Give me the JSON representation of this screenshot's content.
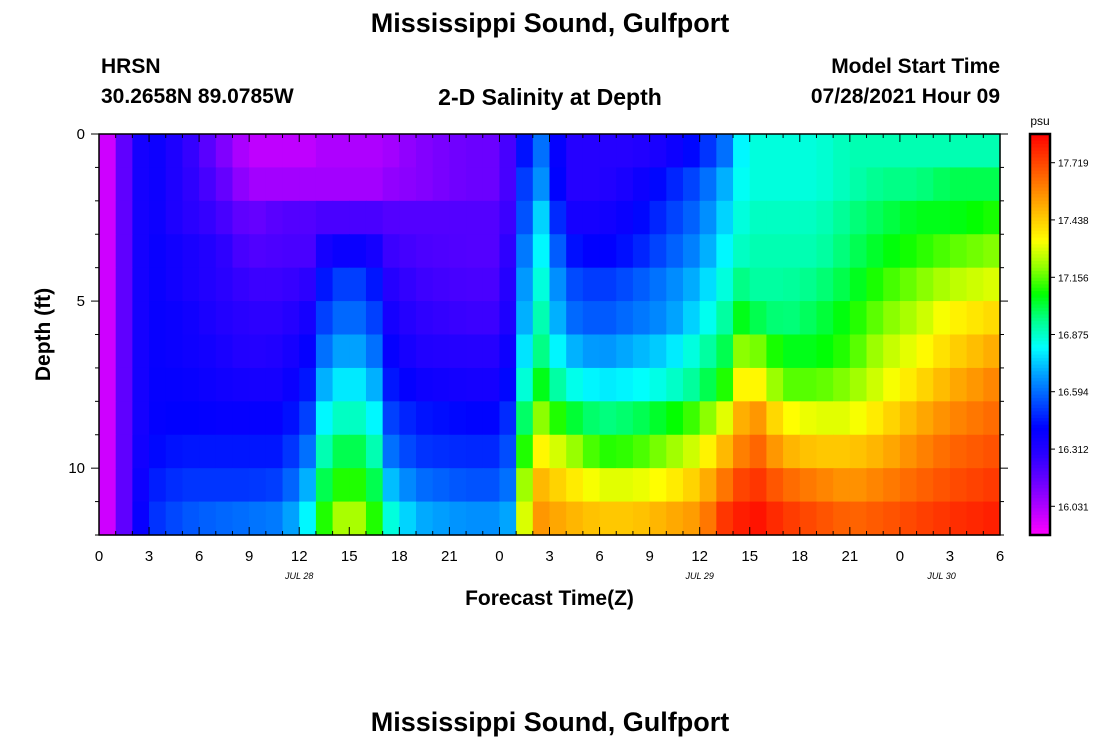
{
  "header": {
    "title": "Mississippi Sound, Gulfport",
    "station": "HRSN",
    "coords": "30.2658N  89.0785W",
    "subtitle": "2-D Salinity at Depth",
    "model_start_label": "Model Start Time",
    "model_start_value": "07/28/2021 Hour 09"
  },
  "footer": {
    "title": "Mississippi Sound, Gulfport"
  },
  "colors": {
    "colormap": [
      "#ff00ff",
      "#b300ff",
      "#6a00ff",
      "#2a00ff",
      "#0000ff",
      "#0050ff",
      "#00a0ff",
      "#00ffff",
      "#00ff90",
      "#00ff00",
      "#90ff00",
      "#ffff00",
      "#ffc000",
      "#ff8000",
      "#ff4000",
      "#ff0000"
    ]
  },
  "chart_data": {
    "type": "heatmap",
    "title": "2-D Salinity at Depth",
    "xlabel": "Forecast Time(Z)",
    "ylabel": "Depth (ft)",
    "colorbar_unit": "psu",
    "colorbar_ticks": [
      "16.031",
      "16.312",
      "16.594",
      "16.875",
      "17.156",
      "17.438",
      "17.719"
    ],
    "value_range": [
      15.89,
      17.86
    ],
    "x_range_hours": [
      0,
      54
    ],
    "x_ticks": [
      "0",
      "3",
      "6",
      "9",
      "12",
      "15",
      "18",
      "21",
      "0",
      "3",
      "6",
      "9",
      "12",
      "15",
      "18",
      "21",
      "0",
      "3",
      "6"
    ],
    "date_labels": [
      "JUL 28",
      "JUL 29",
      "JUL 30"
    ],
    "date_label_hours": [
      12,
      36,
      50.5
    ],
    "y_range_ft": [
      0,
      12
    ],
    "y_ticks": [
      "0",
      "5",
      "10"
    ],
    "depths_ft": [
      0.5,
      1.5,
      2.5,
      3.5,
      4.5,
      5.5,
      6.5,
      7.5,
      8.5,
      9.5,
      10.5,
      11.5
    ],
    "keyframe_hours": [
      0,
      1,
      2,
      3,
      5,
      7,
      9,
      11,
      12.5,
      13.5,
      15,
      16.5,
      17.5,
      19,
      22,
      24,
      25,
      25.7,
      26.5,
      28,
      30,
      32,
      34,
      36,
      37.5,
      38.5,
      39.5,
      41,
      43,
      45,
      47,
      49,
      51,
      54
    ],
    "keyframe_values": [
      [
        15.9,
        16.05,
        16.3,
        16.4,
        16.3,
        16.15,
        16.0,
        16.0,
        16.0,
        16.03,
        16.03,
        16.03,
        16.05,
        16.1,
        16.15,
        16.15,
        16.3,
        16.5,
        16.6,
        16.3,
        16.3,
        16.3,
        16.35,
        16.45,
        16.6,
        16.8,
        16.85,
        16.85,
        16.85,
        16.9,
        16.9,
        16.9,
        16.9,
        16.9
      ],
      [
        15.9,
        16.05,
        16.3,
        16.4,
        16.3,
        16.2,
        16.05,
        16.05,
        16.05,
        16.05,
        16.05,
        16.05,
        16.08,
        16.1,
        16.15,
        16.15,
        16.3,
        16.6,
        16.65,
        16.3,
        16.3,
        16.35,
        16.45,
        16.55,
        16.7,
        16.82,
        16.85,
        16.85,
        16.85,
        16.9,
        16.95,
        16.95,
        17.0,
        17.0
      ],
      [
        15.9,
        16.05,
        16.3,
        16.4,
        16.3,
        16.25,
        16.15,
        16.2,
        16.2,
        16.22,
        16.22,
        16.22,
        16.2,
        16.2,
        16.2,
        16.2,
        16.3,
        16.65,
        16.75,
        16.35,
        16.35,
        16.4,
        16.5,
        16.6,
        16.75,
        16.85,
        16.88,
        16.88,
        16.88,
        16.95,
        17.0,
        17.05,
        17.05,
        17.1
      ],
      [
        15.9,
        16.05,
        16.3,
        16.4,
        16.35,
        16.3,
        16.2,
        16.22,
        16.22,
        16.35,
        16.4,
        16.35,
        16.25,
        16.22,
        16.2,
        16.2,
        16.35,
        16.72,
        16.8,
        16.45,
        16.4,
        16.45,
        16.55,
        16.65,
        16.8,
        16.88,
        16.9,
        16.9,
        16.9,
        16.98,
        17.05,
        17.1,
        17.15,
        17.2
      ],
      [
        15.9,
        16.05,
        16.3,
        16.4,
        16.35,
        16.3,
        16.25,
        16.25,
        16.28,
        16.45,
        16.55,
        16.45,
        16.3,
        16.25,
        16.22,
        16.22,
        16.38,
        16.78,
        16.85,
        16.55,
        16.5,
        16.55,
        16.62,
        16.72,
        16.85,
        16.95,
        16.92,
        16.92,
        16.95,
        17.02,
        17.12,
        17.18,
        17.25,
        17.3
      ],
      [
        15.9,
        16.05,
        16.3,
        16.4,
        16.38,
        16.32,
        16.28,
        16.28,
        16.35,
        16.52,
        16.62,
        16.52,
        16.35,
        16.28,
        16.25,
        16.25,
        16.4,
        16.82,
        16.9,
        16.6,
        16.55,
        16.6,
        16.65,
        16.78,
        16.92,
        17.05,
        17.0,
        16.95,
        17.0,
        17.08,
        17.18,
        17.25,
        17.35,
        17.42
      ],
      [
        15.9,
        16.05,
        16.3,
        16.4,
        16.38,
        16.35,
        16.3,
        16.32,
        16.4,
        16.6,
        16.72,
        16.6,
        16.4,
        16.32,
        16.3,
        16.3,
        16.45,
        16.9,
        16.95,
        16.72,
        16.65,
        16.7,
        16.75,
        16.88,
        17.0,
        17.2,
        17.18,
        17.05,
        17.05,
        17.12,
        17.25,
        17.32,
        17.42,
        17.52
      ],
      [
        15.9,
        16.05,
        16.3,
        16.4,
        16.4,
        16.37,
        16.35,
        16.35,
        16.45,
        16.7,
        16.82,
        16.7,
        16.45,
        16.38,
        16.35,
        16.35,
        16.5,
        17.0,
        17.05,
        16.85,
        16.78,
        16.8,
        16.85,
        16.95,
        17.1,
        17.35,
        17.35,
        17.15,
        17.15,
        17.2,
        17.3,
        17.4,
        17.5,
        17.6
      ],
      [
        15.9,
        16.05,
        16.3,
        16.4,
        16.42,
        16.4,
        16.4,
        16.4,
        16.52,
        16.8,
        16.92,
        16.8,
        16.52,
        16.45,
        16.42,
        16.42,
        16.55,
        17.15,
        17.2,
        17.05,
        16.95,
        16.98,
        17.05,
        17.15,
        17.3,
        17.5,
        17.55,
        17.35,
        17.3,
        17.3,
        17.4,
        17.5,
        17.58,
        17.65
      ],
      [
        15.9,
        16.05,
        16.3,
        16.42,
        16.45,
        16.45,
        16.45,
        16.45,
        16.6,
        16.9,
        17.05,
        16.9,
        16.6,
        16.5,
        16.48,
        16.48,
        16.6,
        17.3,
        17.35,
        17.25,
        17.1,
        17.12,
        17.2,
        17.3,
        17.48,
        17.6,
        17.65,
        17.5,
        17.45,
        17.45,
        17.5,
        17.58,
        17.65,
        17.7
      ],
      [
        15.9,
        16.05,
        16.3,
        16.45,
        16.5,
        16.5,
        16.5,
        16.52,
        16.7,
        17.0,
        17.15,
        17.0,
        16.72,
        16.6,
        16.55,
        16.55,
        16.65,
        17.45,
        17.48,
        17.4,
        17.3,
        17.3,
        17.35,
        17.45,
        17.62,
        17.72,
        17.75,
        17.65,
        17.6,
        17.55,
        17.6,
        17.65,
        17.7,
        17.75
      ],
      [
        15.9,
        16.05,
        16.3,
        16.48,
        16.55,
        16.58,
        16.6,
        16.62,
        16.8,
        17.1,
        17.3,
        17.1,
        16.85,
        16.7,
        16.65,
        16.65,
        16.72,
        17.52,
        17.55,
        17.5,
        17.45,
        17.45,
        17.5,
        17.55,
        17.75,
        17.8,
        17.82,
        17.75,
        17.7,
        17.65,
        17.68,
        17.72,
        17.76,
        17.8
      ]
    ]
  }
}
